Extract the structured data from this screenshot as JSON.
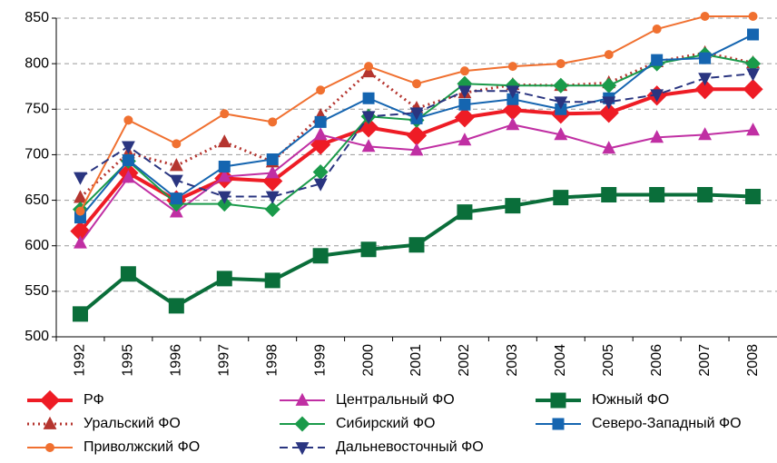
{
  "chart_data": {
    "type": "line",
    "categories": [
      "1992",
      "1995",
      "1996",
      "1997",
      "1998",
      "1999",
      "2000",
      "2001",
      "2002",
      "2003",
      "2004",
      "2005",
      "2006",
      "2007",
      "2008"
    ],
    "ylim": [
      500,
      850
    ],
    "yticks": [
      500,
      550,
      600,
      650,
      700,
      750,
      800,
      850
    ],
    "grid": true,
    "series": [
      {
        "name": "РФ",
        "color": "#ee1c25",
        "marker": "diamond",
        "dash": "solid",
        "line_width": 4,
        "values": [
          616,
          680,
          650,
          674,
          671,
          711,
          730,
          721,
          741,
          749,
          745,
          746,
          765,
          772,
          772
        ]
      },
      {
        "name": "Центральный ФО",
        "color": "#c02fa3",
        "marker": "triangle",
        "dash": "solid",
        "line_width": 2,
        "values": [
          603,
          675,
          637,
          676,
          680,
          722,
          709,
          705,
          716,
          733,
          722,
          707,
          719,
          722,
          727
        ]
      },
      {
        "name": "Южный ФО",
        "color": "#0a6e3a",
        "marker": "square",
        "dash": "solid",
        "line_width": 4,
        "values": [
          525,
          569,
          534,
          564,
          562,
          589,
          596,
          601,
          637,
          644,
          653,
          656,
          656,
          656,
          654
        ]
      },
      {
        "name": "Уральский ФО",
        "color": "#b5352f",
        "marker": "triangle",
        "dash": "dotted",
        "line_width": 3,
        "values": [
          653,
          702,
          688,
          714,
          692,
          743,
          791,
          751,
          768,
          777,
          776,
          779,
          802,
          812,
          801
        ]
      },
      {
        "name": "Сибирский ФО",
        "color": "#1a9a4a",
        "marker": "diamond",
        "dash": "solid",
        "line_width": 2,
        "values": [
          640,
          693,
          646,
          646,
          640,
          681,
          742,
          738,
          778,
          776,
          776,
          776,
          800,
          810,
          800
        ]
      },
      {
        "name": "Северо-Западный ФО",
        "color": "#1565b0",
        "marker": "square",
        "dash": "solid",
        "line_width": 2,
        "values": [
          631,
          694,
          652,
          687,
          695,
          736,
          762,
          740,
          755,
          761,
          750,
          762,
          804,
          806,
          832
        ]
      },
      {
        "name": "Приволжский ФО",
        "color": "#f07030",
        "marker": "circle",
        "dash": "solid",
        "line_width": 2,
        "values": [
          638,
          738,
          712,
          745,
          736,
          771,
          797,
          778,
          792,
          797,
          800,
          810,
          838,
          852,
          852
        ]
      },
      {
        "name": "Дальневосточный ФО",
        "color": "#2a3580",
        "marker": "triangle-down",
        "dash": "dashed",
        "line_width": 2,
        "values": [
          675,
          709,
          672,
          654,
          654,
          668,
          742,
          746,
          770,
          770,
          758,
          758,
          766,
          784,
          789
        ]
      }
    ]
  }
}
